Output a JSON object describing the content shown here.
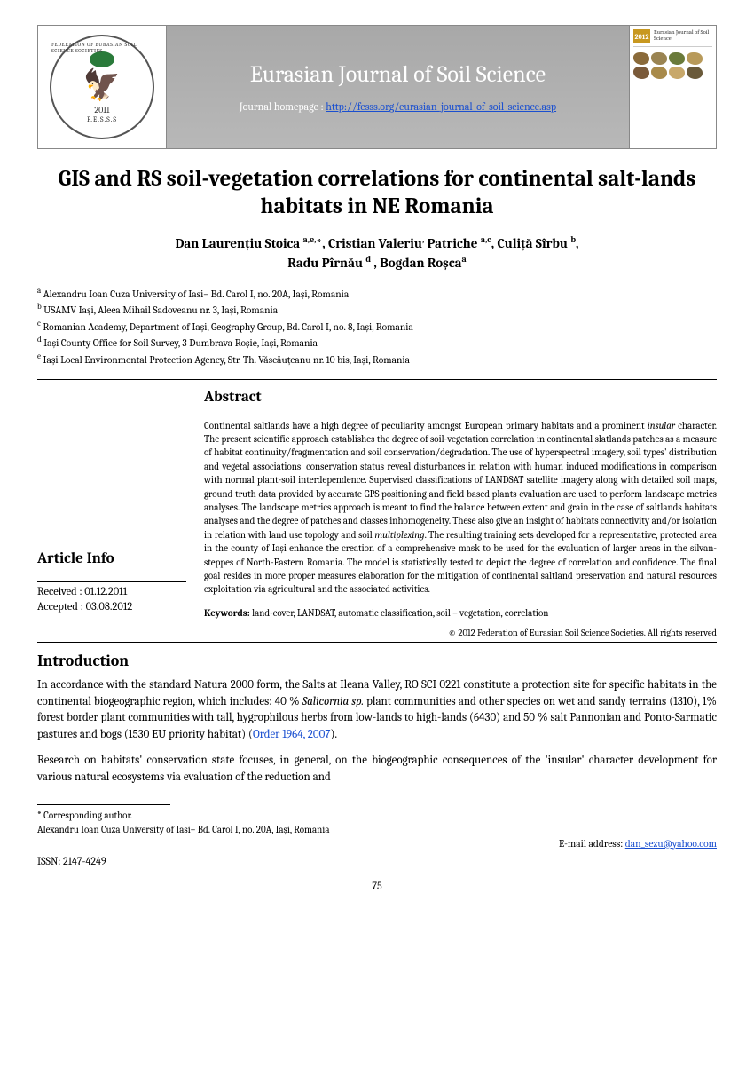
{
  "banner": {
    "journal_title": "Eurasian Journal of Soil Science",
    "homepage_label": "Journal homepage : ",
    "homepage_url": "http://fesss.org/eurasian_journal_of_soil_science.asp",
    "logo": {
      "ring": "FEDERATION OF EURASIAN SOIL SCIENCE SOCIETIES",
      "year": "2011",
      "abbr": "F.E.S.S.S"
    },
    "cover": {
      "year": "2012",
      "journal": "Eurasian Journal of Soil Science",
      "soil_colors": [
        "#8a6a3a",
        "#9a8452",
        "#6a7a3a",
        "#b89a5a",
        "#7a5a3a",
        "#a88a4a",
        "#c8a86a",
        "#6a5a3a"
      ]
    }
  },
  "paper": {
    "title": "GIS and RS soil-vegetation correlations for continental salt-lands habitats in NE Romania",
    "authors_html": "Dan Laurențiu Stoica <sup>a,e,</sup>*, Cristian Valeriu<sup>,</sup> Patriche <sup>a,c</sup>, Culiță Sîrbu <sup>b</sup>,<br>Radu Pîrnău <sup>d</sup> , Bogdan Roșca<sup>a</sup>",
    "affiliations": [
      "Alexandru Ioan Cuza University of Iasi– Bd. Carol I, no. 20A, Iași, Romania",
      "USAMV Iași, Aleea Mihail Sadoveanu nr. 3, Iași, Romania",
      "Romanian Academy, Department of Iași, Geography Group, Bd. Carol I, no. 8, Iași, Romania",
      "Iași County Office for Soil Survey, 3 Dumbrava Roșie, Iași, Romania",
      "Iași Local Environmental Protection Agency, Str. Th. Văscăuțeanu nr. 10 bis, Iași, Romania"
    ],
    "aff_markers": [
      "a",
      "b",
      "c",
      "d",
      "e"
    ]
  },
  "article_info": {
    "heading": "Article Info",
    "received": "Received : 01.12.2011",
    "accepted": "Accepted : 03.08.2012"
  },
  "abstract": {
    "heading": "Abstract",
    "text": "Continental saltlands have a high degree of peculiarity amongst European primary habitats and a prominent <em>insular</em> character. The present scientific approach establishes the degree of soil-vegetation correlation in continental slatlands patches as a measure of habitat continuity/fragmentation and soil conservation/degradation. The use of hyperspectral imagery, soil types' distribution and vegetal associations' conservation status reveal disturbances in relation with human induced modifications in comparison with normal plant-soil interdependence. Supervised classifications of LANDSAT satellite imagery along with detailed soil maps, ground truth data provided by accurate GPS positioning and field based plants evaluation are used to perform landscape metrics analyses. The landscape metrics approach is meant to find the balance between extent and grain in the case of saltlands habitats analyses and the degree of patches and classes inhomogeneity. These also give an insight of habitats connectivity and/or isolation in relation with land use topology and soil <em>multiplexing</em>.  The resulting training sets developed for a representative, protected area in the county of Iași enhance the creation of a comprehensive mask to be used for the evaluation of larger areas in the silvan-steppes of North-Eastern Romania. The model is statistically tested to depict the degree of correlation and confidence. The final goal resides in more proper measures elaboration for the mitigation of continental saltland preservation and natural resources exploitation via agricultural and the associated activities.",
    "keywords_label": "Keywords:",
    "keywords": "land-cover, LANDSAT, automatic classification, soil – vegetation, correlation",
    "copyright": "© 2012 Federation of Eurasian Soil Science Societies. All rights reserved"
  },
  "introduction": {
    "heading": "Introduction",
    "p1_pre": "In accordance with the standard Natura 2000 form, the Salts at Ileana Valley, RO SCI 0221 constitute a protection site for specific habitats in the continental biogeographic region, which includes: 40 % ",
    "p1_em": "Salicornia sp.",
    "p1_post": " plant communities and other species on wet and sandy terrains (1310), 1% forest border plant communities with tall, hygrophilous herbs from low-lands to high-lands (6430) and 50 % salt Pannonian and Ponto-Sarmatic pastures and bogs (1530 EU priority habitat) (",
    "p1_link": "Order 1964, 2007",
    "p1_end": ").",
    "p2": "Research on habitats' conservation state focuses, in general, on the biogeographic consequences of the 'insular' character development for various natural ecosystems via evaluation of the reduction and"
  },
  "footer": {
    "corresponding": "* Corresponding author.",
    "corr_addr": "Alexandru Ioan Cuza University of Iasi– Bd. Carol I, no. 20A, Iași, Romania",
    "email_label": "E-mail address: ",
    "email": "dan_sezu@yahoo.com",
    "issn": "ISSN: 2147-4249",
    "page": "75"
  }
}
